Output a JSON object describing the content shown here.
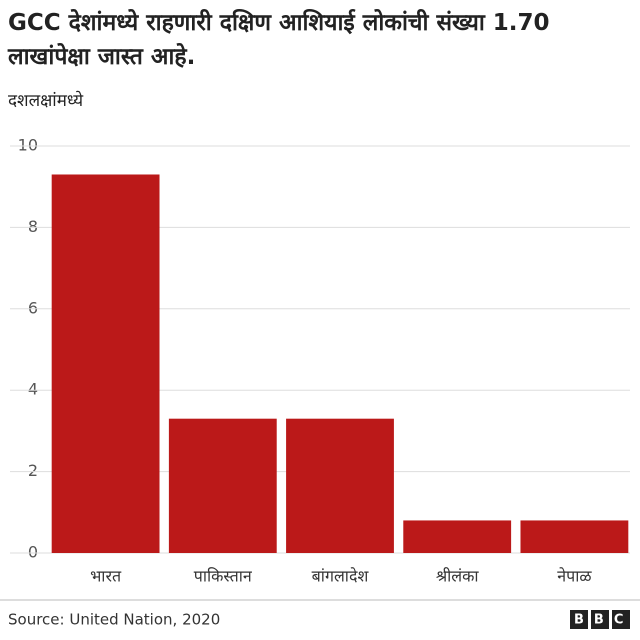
{
  "chart_data": {
    "type": "bar",
    "title": "GCC देशांमध्ये राहणारी दक्षिण आशियाई लोकांची संख्या 1.70 लाखांपेक्षा जास्त आहे.",
    "subtitle": "दशलक्षांमध्ये",
    "categories": [
      "भारत",
      "पाकिस्तान",
      "बांगलादेश",
      "श्रीलंका",
      "नेपाळ"
    ],
    "values": [
      9.3,
      3.3,
      3.3,
      0.8,
      0.8
    ],
    "color": "#bb1919",
    "ylim": [
      0,
      10
    ],
    "yticks": [
      0,
      2,
      4,
      6,
      8,
      10
    ],
    "grid": true,
    "source": "Source: United Nation, 2020",
    "logo": "BBC"
  }
}
